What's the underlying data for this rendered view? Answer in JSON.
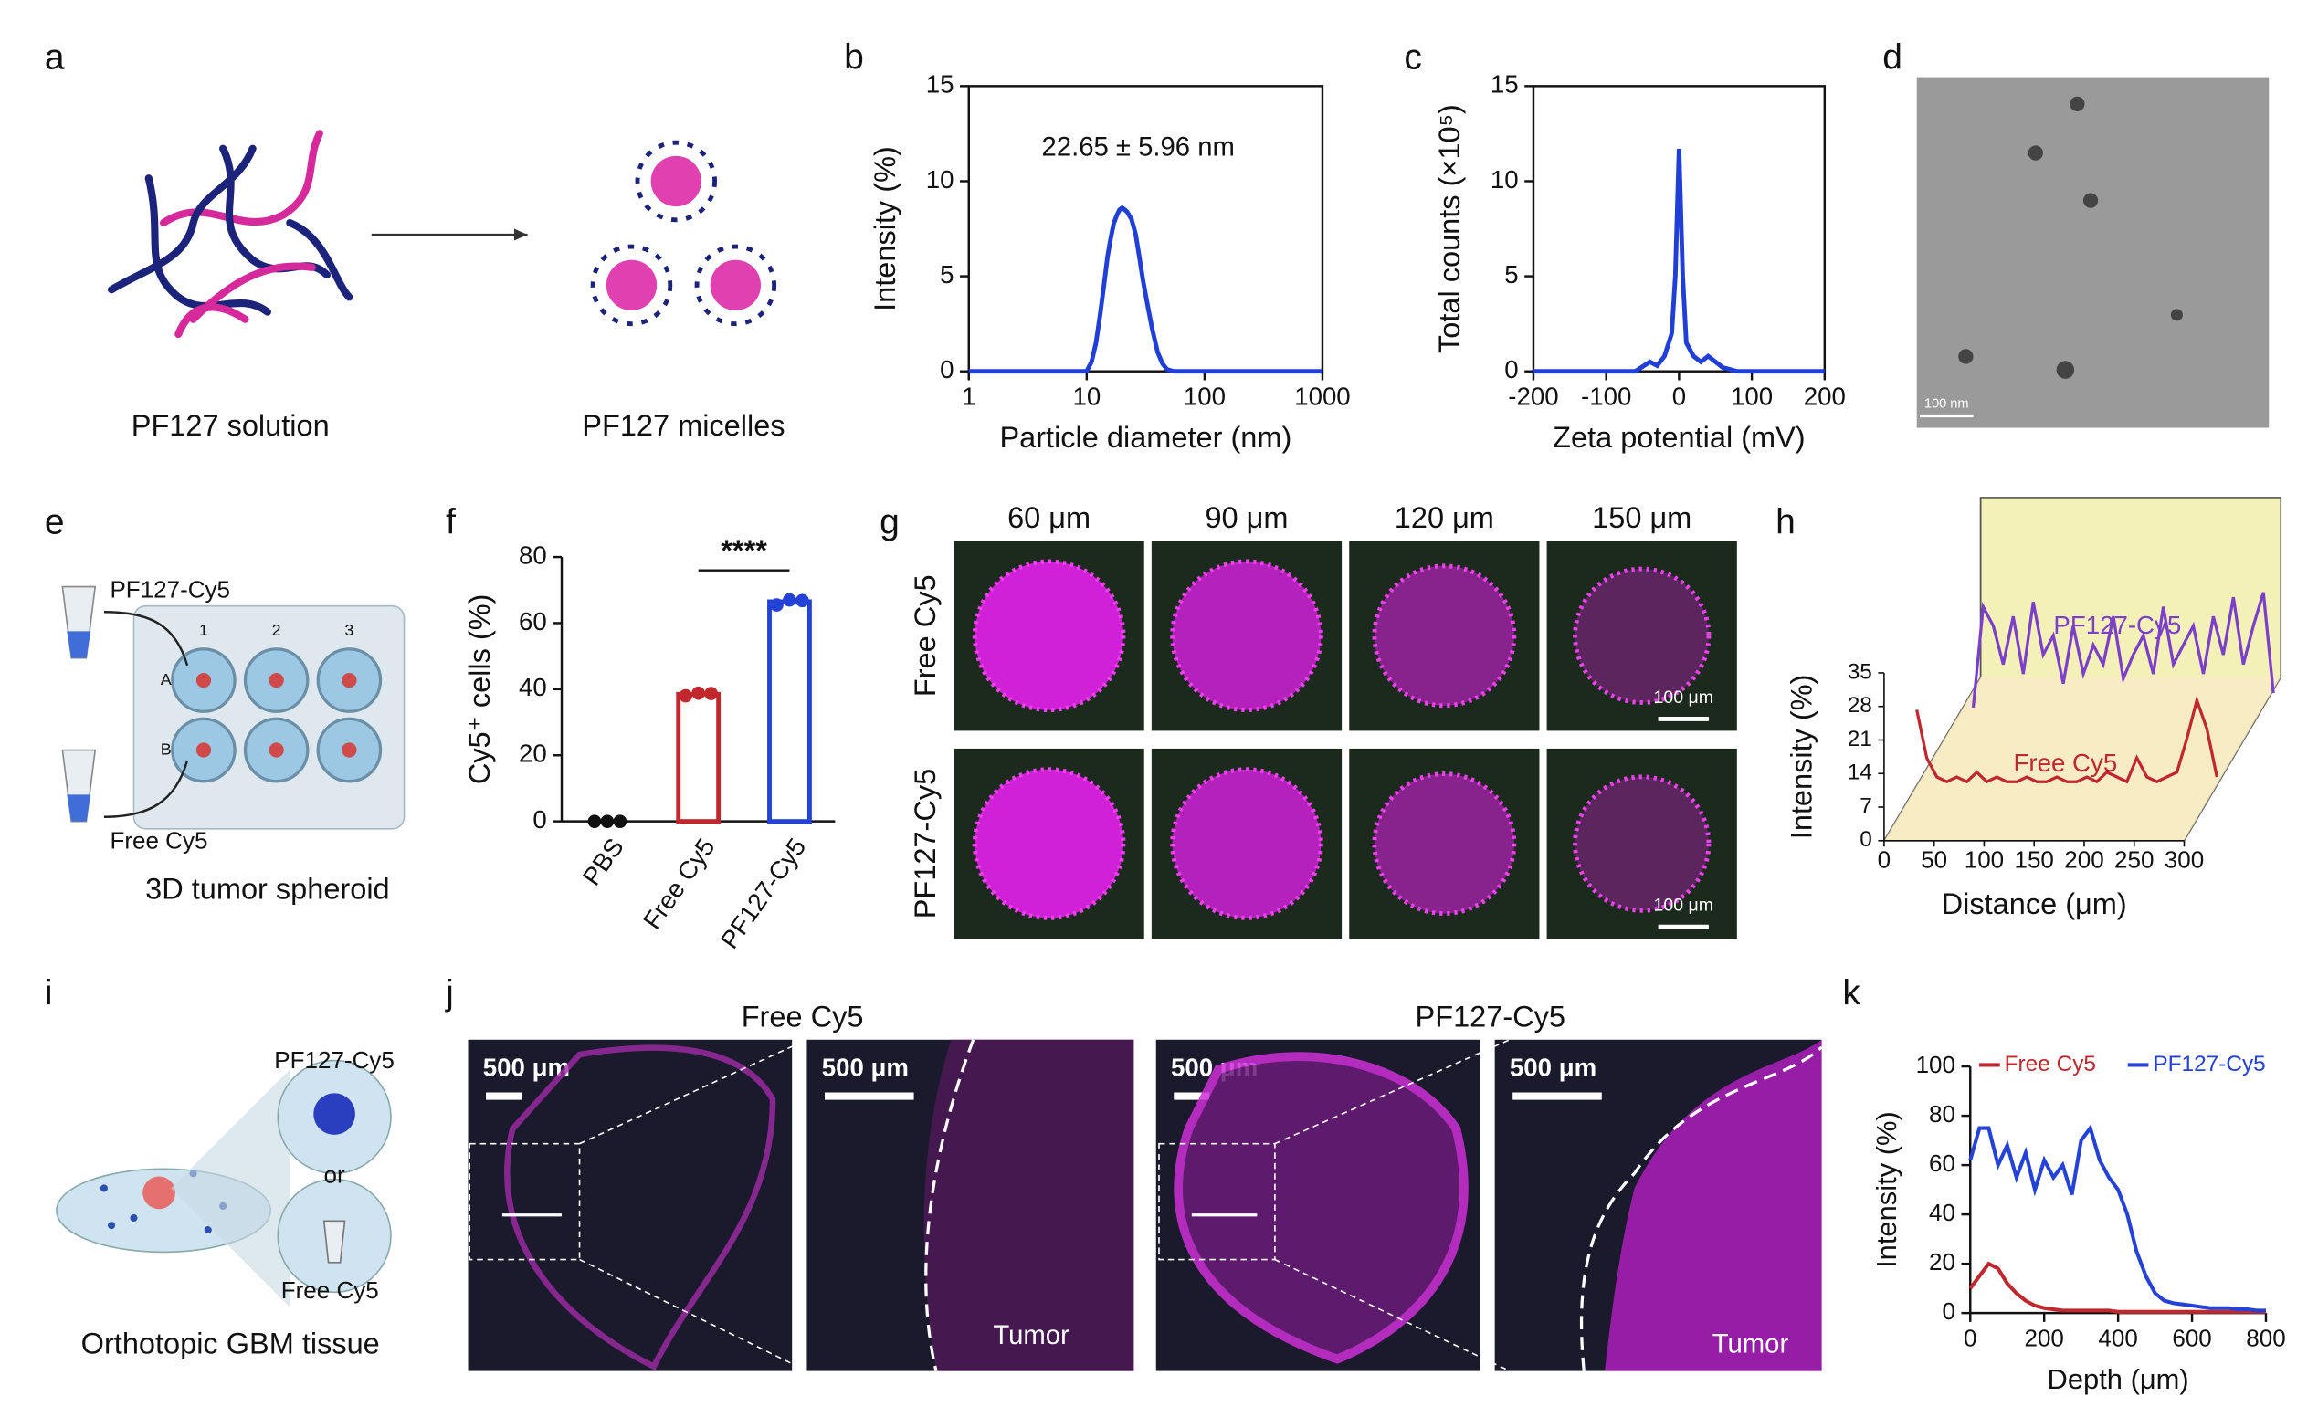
{
  "panel_labels": [
    "a",
    "b",
    "c",
    "d",
    "e",
    "f",
    "g",
    "h",
    "i",
    "j",
    "k"
  ],
  "panel_a": {
    "left_caption": "PF127 solution",
    "right_caption": "PF127 micelles"
  },
  "panel_d": {
    "scale_bar": "100 nm"
  },
  "panel_e": {
    "top_label": "PF127-Cy5",
    "bottom_label": "Free Cy5",
    "caption": "3D tumor spheroid",
    "columns": [
      "1",
      "2",
      "3"
    ],
    "rows": [
      "A",
      "B"
    ]
  },
  "panel_g": {
    "columns": [
      "60 μm",
      "90 μm",
      "120 μm",
      "150 μm"
    ],
    "rows": [
      "Free Cy5",
      "PF127-Cy5"
    ],
    "scale_bars": [
      "100 μm",
      "100 μm"
    ]
  },
  "panel_i": {
    "top_label": "PF127-Cy5",
    "middle_label": "or",
    "bottom_label": "Free Cy5",
    "caption": "Orthotopic GBM tissue"
  },
  "panel_j": {
    "titles": [
      "Free Cy5",
      "PF127-Cy5"
    ],
    "scale_bars": [
      "500 μm",
      "500 μm",
      "500 μm",
      "500 μm"
    ],
    "region_labels": [
      "Tumor",
      "Tumor"
    ]
  },
  "chart_data": [
    {
      "type": "line",
      "xlabel": "Particle diameter (nm)",
      "ylabel": "Intensity (%)",
      "annotation": "22.65 ± 5.96 nm",
      "xscale": "log",
      "xlim": [
        1,
        1000
      ],
      "xticks": [
        1,
        10,
        100,
        1000
      ],
      "ylim": [
        0,
        15
      ],
      "yticks": [
        0,
        5,
        10,
        15
      ],
      "color": "#1f3fd6",
      "x": [
        1,
        10,
        11,
        12,
        13,
        14,
        15,
        16,
        17,
        18,
        19,
        20,
        21,
        22,
        24,
        26,
        28,
        30,
        33,
        36,
        40,
        44,
        48,
        55,
        1000
      ],
      "values": [
        0,
        0,
        0.5,
        1.5,
        3,
        4.5,
        6,
        7,
        7.8,
        8.2,
        8.5,
        8.6,
        8.5,
        8.4,
        8,
        7.2,
        6,
        4.8,
        3.4,
        2.2,
        1,
        0.4,
        0.1,
        0,
        0
      ]
    },
    {
      "type": "line",
      "xlabel": "Zeta potential (mV)",
      "ylabel": "Total counts (×10⁵)",
      "xlim": [
        -200,
        200
      ],
      "xticks": [
        -200,
        -100,
        0,
        100,
        200
      ],
      "ylim": [
        0,
        15
      ],
      "yticks": [
        0,
        5,
        10,
        15
      ],
      "color": "#1f3fd6",
      "x": [
        -200,
        -60,
        -40,
        -30,
        -20,
        -10,
        -5,
        0,
        5,
        10,
        20,
        30,
        40,
        60,
        80,
        200
      ],
      "values": [
        0,
        0,
        0.5,
        0.3,
        0.8,
        2,
        5,
        11.7,
        5,
        1.5,
        0.8,
        0.5,
        0.8,
        0.2,
        0,
        0
      ]
    },
    {
      "type": "bar",
      "ylabel": "Cy5⁺ cells (%)",
      "significance": "****",
      "categories": [
        "PBS",
        "Free Cy5",
        "PF127-Cy5"
      ],
      "values": [
        0,
        38.5,
        66.5
      ],
      "colors": [
        "#111111",
        "#c0282d",
        "#2442d6"
      ],
      "replicates": [
        [
          0,
          0,
          0
        ],
        [
          38,
          38.8,
          38.7
        ],
        [
          65.5,
          67,
          66.8
        ]
      ],
      "ylim": [
        0,
        80
      ],
      "yticks": [
        0,
        20,
        40,
        60,
        80
      ]
    },
    {
      "type": "line3d",
      "xlabel": "Distance (μm)",
      "ylabel": "Intensity (%)",
      "xlim": [
        0,
        300
      ],
      "xticks": [
        0,
        50,
        100,
        150,
        200,
        250,
        300
      ],
      "ylim": [
        0,
        35
      ],
      "yticks": [
        0,
        7,
        14,
        21,
        28,
        35
      ],
      "x": [
        0,
        10,
        20,
        30,
        40,
        50,
        60,
        70,
        80,
        90,
        100,
        110,
        120,
        130,
        140,
        150,
        160,
        170,
        180,
        190,
        200,
        210,
        220,
        230,
        240,
        250,
        260,
        270,
        280,
        290,
        300
      ],
      "series": [
        {
          "name": "Free Cy5",
          "color": "#c0282d",
          "values": [
            18,
            8,
            4,
            3,
            4,
            3,
            5,
            3,
            4,
            3,
            3,
            4,
            3,
            3,
            4,
            3,
            3,
            4,
            3,
            5,
            4,
            3,
            8,
            4,
            3,
            4,
            5,
            12,
            20,
            14,
            4
          ]
        },
        {
          "name": "PF127-Cy5",
          "color": "#7b3fc9",
          "values": [
            3,
            24,
            20,
            12,
            22,
            10,
            25,
            14,
            18,
            8,
            20,
            10,
            16,
            12,
            22,
            9,
            14,
            18,
            10,
            24,
            12,
            16,
            20,
            10,
            22,
            14,
            26,
            12,
            20,
            27,
            6
          ]
        }
      ]
    },
    {
      "type": "line",
      "xlabel": "Depth (μm)",
      "ylabel": "Intensity (%)",
      "xlim": [
        0,
        800
      ],
      "xticks": [
        0,
        200,
        400,
        600,
        800
      ],
      "ylim": [
        0,
        100
      ],
      "yticks": [
        0,
        20,
        40,
        60,
        80,
        100
      ],
      "x": [
        0,
        25,
        50,
        75,
        100,
        125,
        150,
        175,
        200,
        225,
        250,
        275,
        300,
        325,
        350,
        375,
        400,
        425,
        450,
        475,
        500,
        525,
        550,
        575,
        600,
        625,
        650,
        675,
        700,
        725,
        750,
        775,
        800
      ],
      "series": [
        {
          "name": "Free Cy5",
          "color": "#c0282d",
          "values": [
            10,
            15,
            20,
            18,
            12,
            8,
            5,
            3,
            2,
            1.5,
            1,
            1,
            1,
            1,
            1,
            1,
            0.5,
            0.5,
            0.5,
            0.5,
            0.5,
            0.5,
            0.5,
            0.5,
            0.5,
            0.5,
            0.5,
            0.5,
            0.5,
            0.5,
            0.5,
            0.5,
            0.5
          ]
        },
        {
          "name": "PF127-Cy5",
          "color": "#2442d6",
          "values": [
            62,
            75,
            75,
            60,
            68,
            55,
            65,
            50,
            62,
            55,
            60,
            48,
            70,
            75,
            62,
            55,
            50,
            40,
            25,
            15,
            8,
            5,
            4,
            3.5,
            3,
            2.5,
            2,
            2,
            2,
            1.5,
            1.5,
            1,
            1
          ]
        }
      ]
    }
  ]
}
